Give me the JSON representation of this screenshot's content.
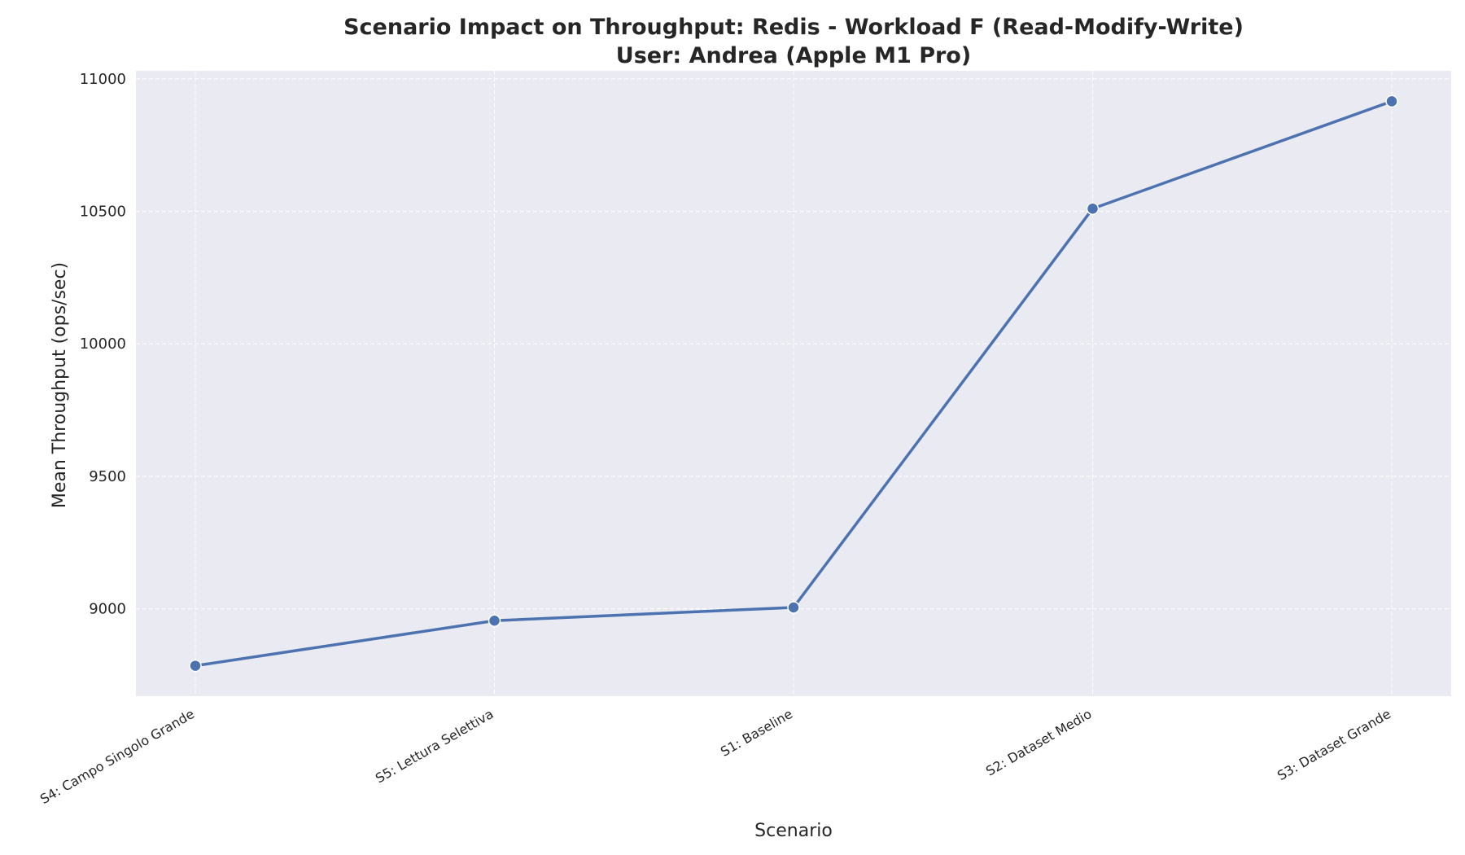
{
  "chart_data": {
    "type": "line",
    "title": "Scenario Impact on Throughput: Redis - Workload F (Read-Modify-Write)",
    "subtitle": "User: Andrea (Apple M1 Pro)",
    "xlabel": "Scenario",
    "ylabel": "Mean Throughput (ops/sec)",
    "categories": [
      "S4: Campo Singolo Grande",
      "S5: Lettura Selettiva",
      "S1: Baseline",
      "S2: Dataset Medio",
      "S3: Dataset Grande"
    ],
    "values": [
      8785,
      8955,
      9005,
      10510,
      10915
    ],
    "ylim": [
      8670,
      11030
    ],
    "yticks": [
      9000,
      9500,
      10000,
      10500,
      11000
    ],
    "grid": true,
    "legend": "none",
    "colors": {
      "line": "#4c72b0",
      "plot_background": "#eaeaf2",
      "marker_edge": "#ffffff"
    }
  }
}
